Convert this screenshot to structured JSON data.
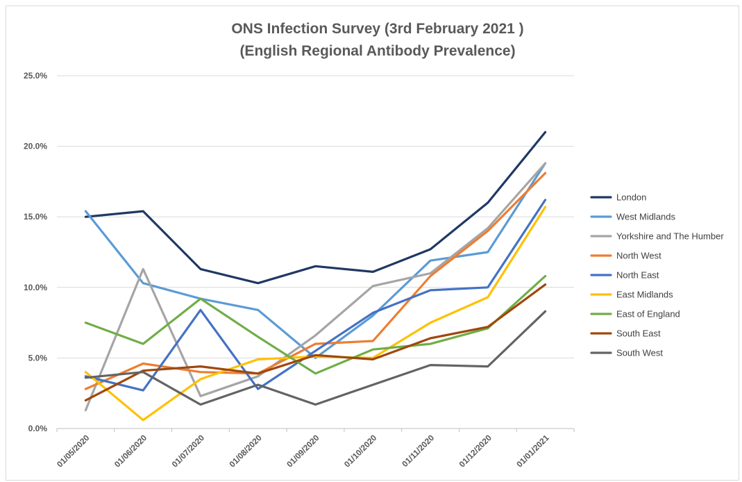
{
  "chart_data": {
    "type": "line",
    "title": [
      "ONS Infection Survey (3rd February 2021 )",
      "(English Regional Antibody Prevalence)"
    ],
    "x": [
      "01/05/2020",
      "01/06/2020",
      "01/07/2020",
      "01/08/2020",
      "01/09/2020",
      "01/10/2020",
      "01/11/2020",
      "01/12/2020",
      "01/01/2021"
    ],
    "ylim": [
      0,
      0.25
    ],
    "yticks": [
      "0.0%",
      "5.0%",
      "10.0%",
      "15.0%",
      "20.0%",
      "25.0%"
    ],
    "grid": true,
    "legend_position": "right",
    "series": [
      {
        "name": "London",
        "color": "#1f3864",
        "values": [
          0.15,
          0.154,
          0.113,
          0.103,
          0.115,
          0.111,
          0.127,
          0.16,
          0.21
        ]
      },
      {
        "name": "West Midlands",
        "color": "#5b9bd5",
        "values": [
          0.154,
          0.103,
          0.092,
          0.084,
          0.05,
          0.08,
          0.119,
          0.125,
          0.188
        ]
      },
      {
        "name": "Yorkshire and The Humber",
        "color": "#a5a5a5",
        "values": [
          0.013,
          0.113,
          0.023,
          0.037,
          0.066,
          0.101,
          0.11,
          0.142,
          0.188
        ]
      },
      {
        "name": "North West",
        "color": "#ed7d31",
        "values": [
          0.028,
          0.046,
          0.04,
          0.039,
          0.06,
          0.062,
          0.108,
          0.14,
          0.181
        ]
      },
      {
        "name": "North East",
        "color": "#4472c4",
        "values": [
          0.037,
          0.027,
          0.084,
          0.028,
          0.055,
          0.082,
          0.098,
          0.1,
          0.162
        ]
      },
      {
        "name": "East Midlands",
        "color": "#ffc000",
        "values": [
          0.04,
          0.006,
          0.035,
          0.049,
          0.051,
          0.05,
          0.075,
          0.093,
          0.157
        ]
      },
      {
        "name": "East of England",
        "color": "#70ad47",
        "values": [
          0.075,
          0.06,
          0.092,
          0.065,
          0.039,
          0.056,
          0.06,
          0.071,
          0.108
        ]
      },
      {
        "name": "South East",
        "color": "#9e480e",
        "values": [
          0.02,
          0.041,
          0.044,
          0.039,
          0.052,
          0.049,
          0.064,
          0.072,
          0.102
        ]
      },
      {
        "name": "South West",
        "color": "#636363",
        "values": [
          0.036,
          0.04,
          0.017,
          0.031,
          0.017,
          0.031,
          0.045,
          0.044,
          0.083
        ]
      }
    ]
  }
}
